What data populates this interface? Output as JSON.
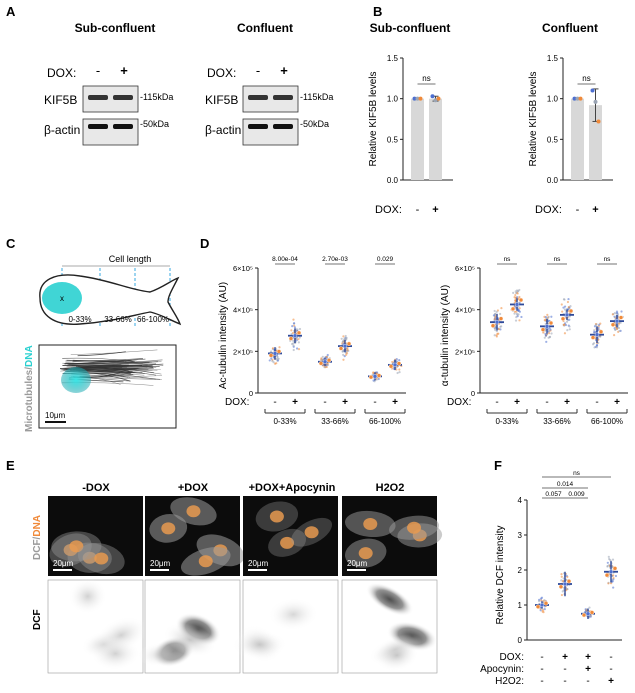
{
  "panels": {
    "A": {
      "letter": "A",
      "groups": [
        {
          "title": "Sub-confluent",
          "dox_label": "DOX:",
          "minus": "-",
          "plus": "+",
          "row1": "KIF5B",
          "row2": "β-actin",
          "mw1": "-115kDa",
          "mw2": "-50kDa"
        },
        {
          "title": "Confluent",
          "dox_label": "DOX:",
          "minus": "-",
          "plus": "+",
          "row1": "KIF5B",
          "row2": "β-actin",
          "mw1": "-115kDa",
          "mw2": "-50kDa"
        }
      ]
    },
    "B": {
      "letter": "B"
    },
    "C": {
      "letter": "C",
      "cell_length": "Cell length",
      "segments": [
        "0-33%",
        "33-66%",
        "66-100%"
      ],
      "nucleus_mark": "x",
      "vertical_label_gray": "Microtubules",
      "vertical_label_sep": "/",
      "vertical_label_cyan": "DNA",
      "scale_bar": "10μm"
    },
    "D": {
      "letter": "D"
    },
    "E": {
      "letter": "E",
      "columns": [
        "-DOX",
        "+DOX",
        "+DOX+Apocynin",
        "H2O2"
      ],
      "row_label_top_gray": "DCF",
      "row_label_top_sep": "/",
      "row_label_top_orange": "DNA",
      "row_label_bottom": "DCF",
      "scale_bar": "20μm"
    },
    "F": {
      "letter": "F"
    }
  },
  "chart_data": [
    {
      "id": "B-sub",
      "type": "bar",
      "title": "Sub-confluent",
      "ylabel": "Relative KIF5B levels",
      "ylim": [
        0,
        1.5
      ],
      "yticks": [
        "0.0",
        "0.5",
        "1.0",
        "1.5"
      ],
      "categories": [
        "-",
        "+"
      ],
      "x_row_label": "DOX:",
      "values": [
        1.0,
        1.0
      ],
      "errors": [
        0,
        0.03
      ],
      "replicates": [
        [
          1.0,
          1.0,
          1.0
        ],
        [
          1.03,
          0.98,
          1.0
        ]
      ],
      "significance": "ns"
    },
    {
      "id": "B-conf",
      "type": "bar",
      "title": "Confluent",
      "ylabel": "Relative KIF5B levels",
      "ylim": [
        0,
        1.5
      ],
      "yticks": [
        "0.0",
        "0.5",
        "1.0",
        "1.5"
      ],
      "categories": [
        "-",
        "+"
      ],
      "x_row_label": "DOX:",
      "values": [
        1.0,
        0.92
      ],
      "errors": [
        0,
        0.2
      ],
      "replicates": [
        [
          1.0,
          1.0,
          1.0
        ],
        [
          1.1,
          0.96,
          0.72
        ]
      ],
      "significance": "ns"
    },
    {
      "id": "D-ac",
      "type": "scatter",
      "ylabel": "Ac-tubulin intensity (AU)",
      "ylim": [
        0,
        600000
      ],
      "yticks": [
        "0",
        "2×10⁵",
        "4×10⁵",
        "6×10⁵"
      ],
      "tick_values": [
        0,
        200000,
        400000,
        600000
      ],
      "x_row_label": "DOX:",
      "groups": [
        "0-33%",
        "33-66%",
        "66-100%"
      ],
      "conditions": [
        "-",
        "+"
      ],
      "means": [
        190000,
        275000,
        150000,
        225000,
        80000,
        135000
      ],
      "errors": [
        30000,
        35000,
        20000,
        30000,
        20000,
        25000
      ],
      "pvalues": [
        "8.00e-04",
        "2.70e-03",
        "0.029"
      ]
    },
    {
      "id": "D-alpha",
      "type": "scatter",
      "ylabel": "α-tubulin intensity (AU)",
      "ylim": [
        0,
        600000
      ],
      "yticks": [
        "0",
        "2×10⁵",
        "4×10⁵",
        "6×10⁵"
      ],
      "tick_values": [
        0,
        200000,
        400000,
        600000
      ],
      "x_row_label": "DOX:",
      "groups": [
        "0-33%",
        "33-66%",
        "66-100%"
      ],
      "conditions": [
        "-",
        "+"
      ],
      "means": [
        340000,
        425000,
        320000,
        375000,
        280000,
        345000
      ],
      "errors": [
        40000,
        30000,
        35000,
        25000,
        40000,
        30000
      ],
      "pvalues": [
        "ns",
        "ns",
        "ns"
      ]
    },
    {
      "id": "F",
      "type": "scatter",
      "ylabel": "Relative DCF intensity",
      "ylim": [
        0,
        4
      ],
      "yticks": [
        "0",
        "1",
        "2",
        "3",
        "4"
      ],
      "row_labels": [
        "DOX:",
        "Apocynin:",
        "H2O2:"
      ],
      "conditions": [
        [
          "-",
          "-",
          "-"
        ],
        [
          "+",
          "-",
          "-"
        ],
        [
          "+",
          "+",
          "-"
        ],
        [
          "-",
          "-",
          "+"
        ]
      ],
      "means": [
        1.0,
        1.6,
        0.75,
        1.95
      ],
      "errors": [
        0.1,
        0.35,
        0.15,
        0.3
      ],
      "comparisons": [
        {
          "a": 0,
          "b": 1,
          "label": "0.057"
        },
        {
          "a": 1,
          "b": 2,
          "label": "0.009"
        },
        {
          "a": 0,
          "b": 2,
          "label": "0.014"
        },
        {
          "a": 0,
          "b": 3,
          "label": "ns"
        }
      ]
    }
  ],
  "colors": {
    "bar": "#d8d8d8",
    "dot_blue": "#4d6fd0",
    "dot_orange": "#f08a3a",
    "dot_gray": "#9aa4b4",
    "mean_bar": "#2e4a9a",
    "cyan": "#2bd0d0",
    "orange_text": "#f08a3a",
    "gray_text": "#9a9a9a",
    "dashed": "#3aa8e0"
  }
}
